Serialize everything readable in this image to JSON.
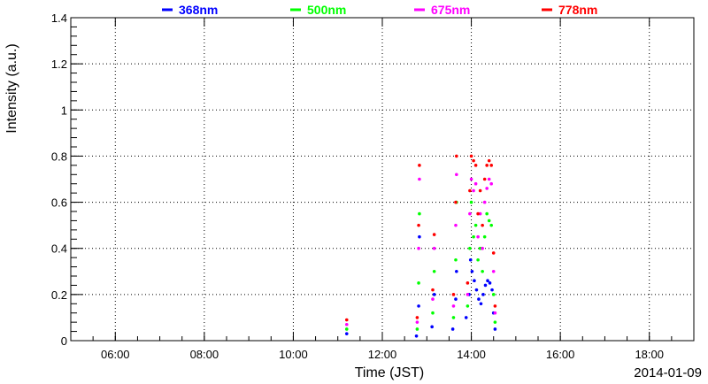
{
  "chart_data": {
    "type": "scatter",
    "xlabel": "Time (JST)",
    "ylabel": "Intensity (a.u.)",
    "date_label": "2014-01-09",
    "x_unit": "time of day (HH:MM, JST)",
    "xlim": [
      "05:00",
      "19:00"
    ],
    "ylim": [
      0,
      1.4
    ],
    "x_ticks": [
      "06:00",
      "08:00",
      "10:00",
      "12:00",
      "14:00",
      "16:00",
      "18:00"
    ],
    "y_ticks": [
      "0",
      "0.2",
      "0.4",
      "0.6",
      "0.8",
      "1",
      "1.2",
      "1.4"
    ],
    "grid": true,
    "legend_position": "top",
    "series": [
      {
        "name": "368nm",
        "color": "#0000ff",
        "points": [
          [
            "11:12",
            0.03
          ],
          [
            "12:46",
            0.02
          ],
          [
            "12:49",
            0.15
          ],
          [
            "12:50",
            0.45
          ],
          [
            "13:07",
            0.06
          ],
          [
            "13:10",
            0.2
          ],
          [
            "13:35",
            0.05
          ],
          [
            "13:39",
            0.18
          ],
          [
            "13:40",
            0.3
          ],
          [
            "13:53",
            0.1
          ],
          [
            "13:57",
            0.2
          ],
          [
            "13:59",
            0.35
          ],
          [
            "14:01",
            0.3
          ],
          [
            "14:04",
            0.26
          ],
          [
            "14:07",
            0.22
          ],
          [
            "14:10",
            0.18
          ],
          [
            "14:13",
            0.16
          ],
          [
            "14:16",
            0.2
          ],
          [
            "14:19",
            0.24
          ],
          [
            "14:22",
            0.26
          ],
          [
            "14:25",
            0.25
          ],
          [
            "14:28",
            0.22
          ],
          [
            "14:30",
            0.12
          ],
          [
            "14:32",
            0.05
          ]
        ]
      },
      {
        "name": "500nm",
        "color": "#00ff00",
        "points": [
          [
            "11:12",
            0.05
          ],
          [
            "12:47",
            0.05
          ],
          [
            "12:49",
            0.25
          ],
          [
            "12:50",
            0.55
          ],
          [
            "13:08",
            0.12
          ],
          [
            "13:10",
            0.3
          ],
          [
            "13:36",
            0.1
          ],
          [
            "13:39",
            0.35
          ],
          [
            "13:40",
            0.6
          ],
          [
            "13:55",
            0.15
          ],
          [
            "13:58",
            0.4
          ],
          [
            "14:00",
            0.6
          ],
          [
            "14:03",
            0.45
          ],
          [
            "14:06",
            0.5
          ],
          [
            "14:09",
            0.35
          ],
          [
            "14:12",
            0.4
          ],
          [
            "14:15",
            0.3
          ],
          [
            "14:18",
            0.45
          ],
          [
            "14:21",
            0.55
          ],
          [
            "14:24",
            0.52
          ],
          [
            "14:27",
            0.5
          ],
          [
            "14:30",
            0.2
          ],
          [
            "14:32",
            0.08
          ]
        ]
      },
      {
        "name": "675nm",
        "color": "#ff00ff",
        "points": [
          [
            "11:12",
            0.07
          ],
          [
            "12:47",
            0.08
          ],
          [
            "12:49",
            0.4
          ],
          [
            "12:50",
            0.7
          ],
          [
            "13:08",
            0.18
          ],
          [
            "13:10",
            0.4
          ],
          [
            "13:36",
            0.15
          ],
          [
            "13:39",
            0.5
          ],
          [
            "13:40",
            0.72
          ],
          [
            "13:55",
            0.2
          ],
          [
            "13:58",
            0.55
          ],
          [
            "14:00",
            0.7
          ],
          [
            "14:03",
            0.65
          ],
          [
            "14:06",
            0.68
          ],
          [
            "14:09",
            0.45
          ],
          [
            "14:12",
            0.55
          ],
          [
            "14:15",
            0.4
          ],
          [
            "14:18",
            0.6
          ],
          [
            "14:21",
            0.66
          ],
          [
            "14:24",
            0.7
          ],
          [
            "14:27",
            0.68
          ],
          [
            "14:30",
            0.3
          ],
          [
            "14:32",
            0.12
          ]
        ]
      },
      {
        "name": "778nm",
        "color": "#ff0000",
        "points": [
          [
            "11:12",
            0.09
          ],
          [
            "12:47",
            0.1
          ],
          [
            "12:49",
            0.5
          ],
          [
            "12:50",
            0.76
          ],
          [
            "13:08",
            0.22
          ],
          [
            "13:10",
            0.46
          ],
          [
            "13:36",
            0.2
          ],
          [
            "13:39",
            0.6
          ],
          [
            "13:40",
            0.8
          ],
          [
            "13:55",
            0.25
          ],
          [
            "13:58",
            0.65
          ],
          [
            "14:00",
            0.8
          ],
          [
            "14:03",
            0.78
          ],
          [
            "14:06",
            0.76
          ],
          [
            "14:09",
            0.55
          ],
          [
            "14:12",
            0.65
          ],
          [
            "14:15",
            0.5
          ],
          [
            "14:18",
            0.7
          ],
          [
            "14:21",
            0.76
          ],
          [
            "14:24",
            0.78
          ],
          [
            "14:27",
            0.76
          ],
          [
            "14:30",
            0.38
          ],
          [
            "14:32",
            0.15
          ]
        ]
      }
    ]
  }
}
